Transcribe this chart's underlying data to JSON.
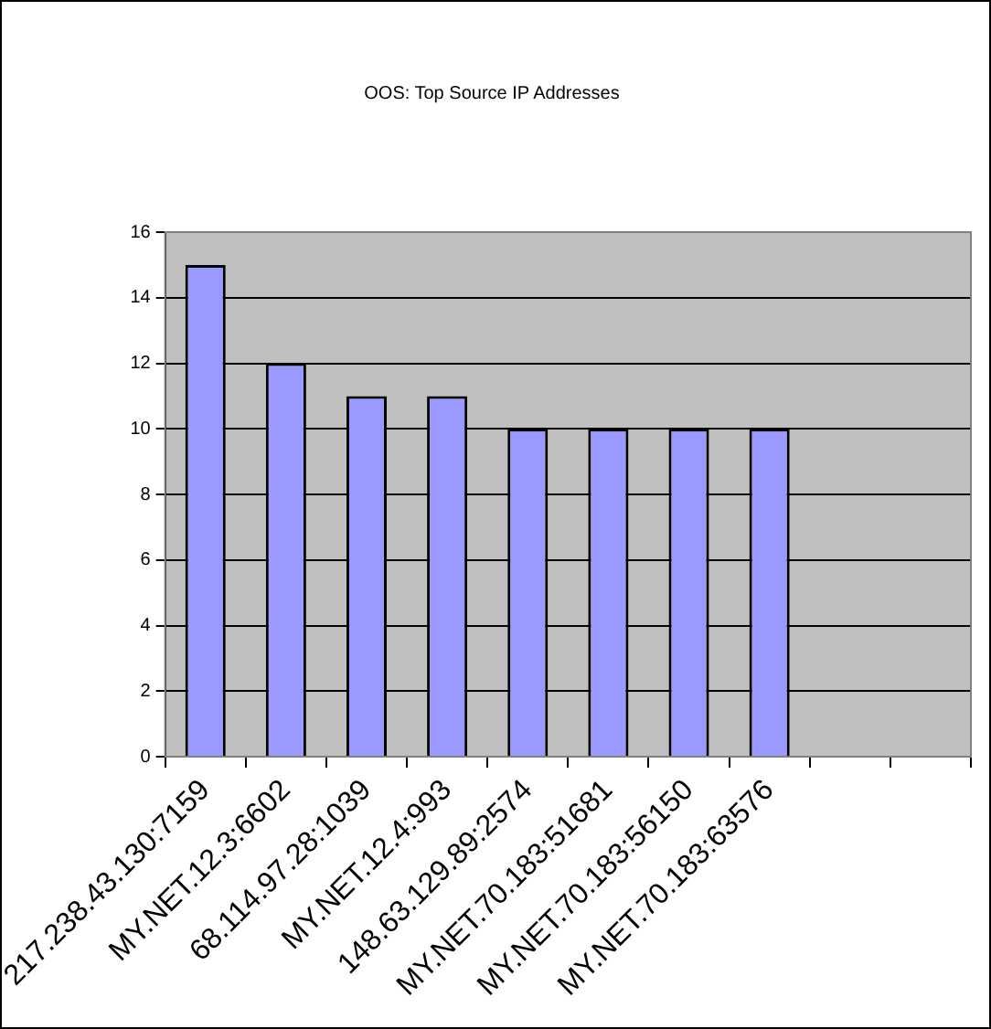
{
  "chart_data": {
    "type": "bar",
    "title": "OOS: Top Source IP Addresses",
    "categories": [
      "217.238.43.130:7159",
      "MY.NET.12.3:6602",
      "68.114.97.28:1039",
      "MY.NET.12.4:993",
      "148.63.129.89:2574",
      "MY.NET.70.183:51681",
      "MY.NET.70.183:56150",
      "MY.NET.70.183:63576",
      null,
      null
    ],
    "values": [
      15,
      12,
      11,
      11,
      10,
      10,
      10,
      10,
      null,
      null
    ],
    "color": "#9999ff",
    "ylim": [
      0,
      16
    ],
    "yticks": [
      0,
      2,
      4,
      6,
      8,
      10,
      12,
      14,
      16
    ],
    "grid": "y",
    "legend": false
  }
}
